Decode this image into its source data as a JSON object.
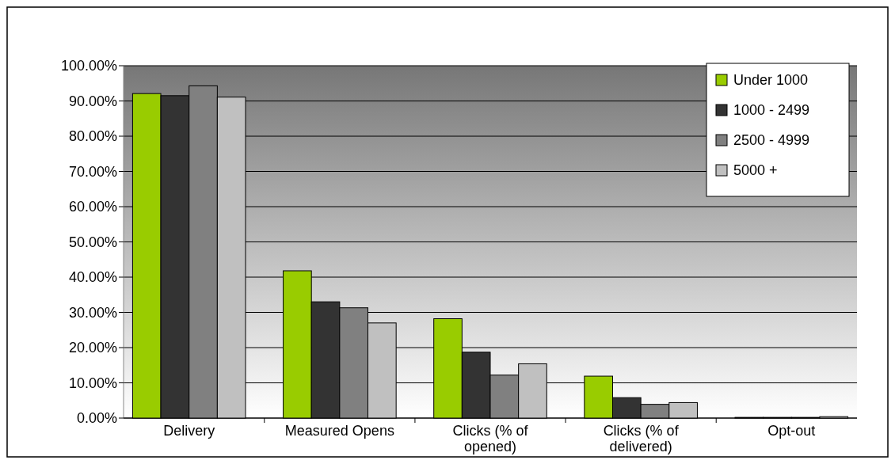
{
  "chart_data": {
    "type": "bar",
    "categories": [
      "Delivery",
      "Measured Opens",
      "Clicks (% of opened)",
      "Clicks (% of delivered)",
      "Opt-out"
    ],
    "series": [
      {
        "name": "Under 1000",
        "color": "#99cc00",
        "values": [
          92.1,
          41.8,
          28.2,
          11.9,
          0.2
        ]
      },
      {
        "name": "1000 - 2499",
        "color": "#333333",
        "values": [
          91.5,
          33.0,
          18.7,
          5.8,
          0.2
        ]
      },
      {
        "name": "2500 - 4999",
        "color": "#808080",
        "values": [
          94.3,
          31.3,
          12.2,
          3.9,
          0.2
        ]
      },
      {
        "name": "5000 +",
        "color": "#c0c0c0",
        "values": [
          91.1,
          27.0,
          15.4,
          4.4,
          0.4
        ]
      }
    ],
    "ylim": [
      0,
      100
    ],
    "yticks": [
      {
        "value": 0,
        "label": "0.00%"
      },
      {
        "value": 10,
        "label": "10.00%"
      },
      {
        "value": 20,
        "label": "20.00%"
      },
      {
        "value": 30,
        "label": "30.00%"
      },
      {
        "value": 40,
        "label": "40.00%"
      },
      {
        "value": 50,
        "label": "50.00%"
      },
      {
        "value": 60,
        "label": "60.00%"
      },
      {
        "value": 70,
        "label": "70.00%"
      },
      {
        "value": 80,
        "label": "80.00%"
      },
      {
        "value": 90,
        "label": "90.00%"
      },
      {
        "value": 100,
        "label": "100.00%"
      }
    ],
    "grid": "y",
    "legend": "top right"
  }
}
